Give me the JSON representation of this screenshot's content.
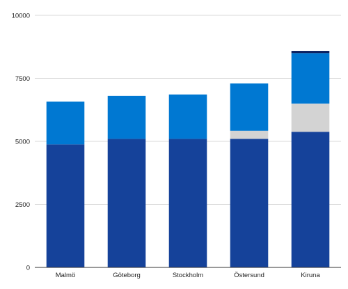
{
  "chart_data": {
    "type": "bar",
    "stacked": true,
    "title": "",
    "xlabel": "",
    "ylabel": "",
    "categories": [
      "Malmö",
      "Göteborg",
      "Stockholm",
      "Östersund",
      "Kiruna"
    ],
    "ylim": [
      0,
      10000
    ],
    "y_ticks": [
      "0",
      "2500",
      "5000",
      "7500",
      "10000"
    ],
    "grid": true,
    "legend": "none",
    "series": [
      {
        "color": "#15429a",
        "values": [
          4880,
          5100,
          5100,
          5100,
          5380
        ]
      },
      {
        "color": "#d3d3d3",
        "values": [
          0,
          0,
          0,
          320,
          1120
        ]
      },
      {
        "color": "#0078d2",
        "values": [
          1700,
          1700,
          1760,
          1880,
          2000
        ]
      },
      {
        "color": "#0b2262",
        "values": [
          0,
          0,
          0,
          0,
          90
        ]
      }
    ]
  }
}
